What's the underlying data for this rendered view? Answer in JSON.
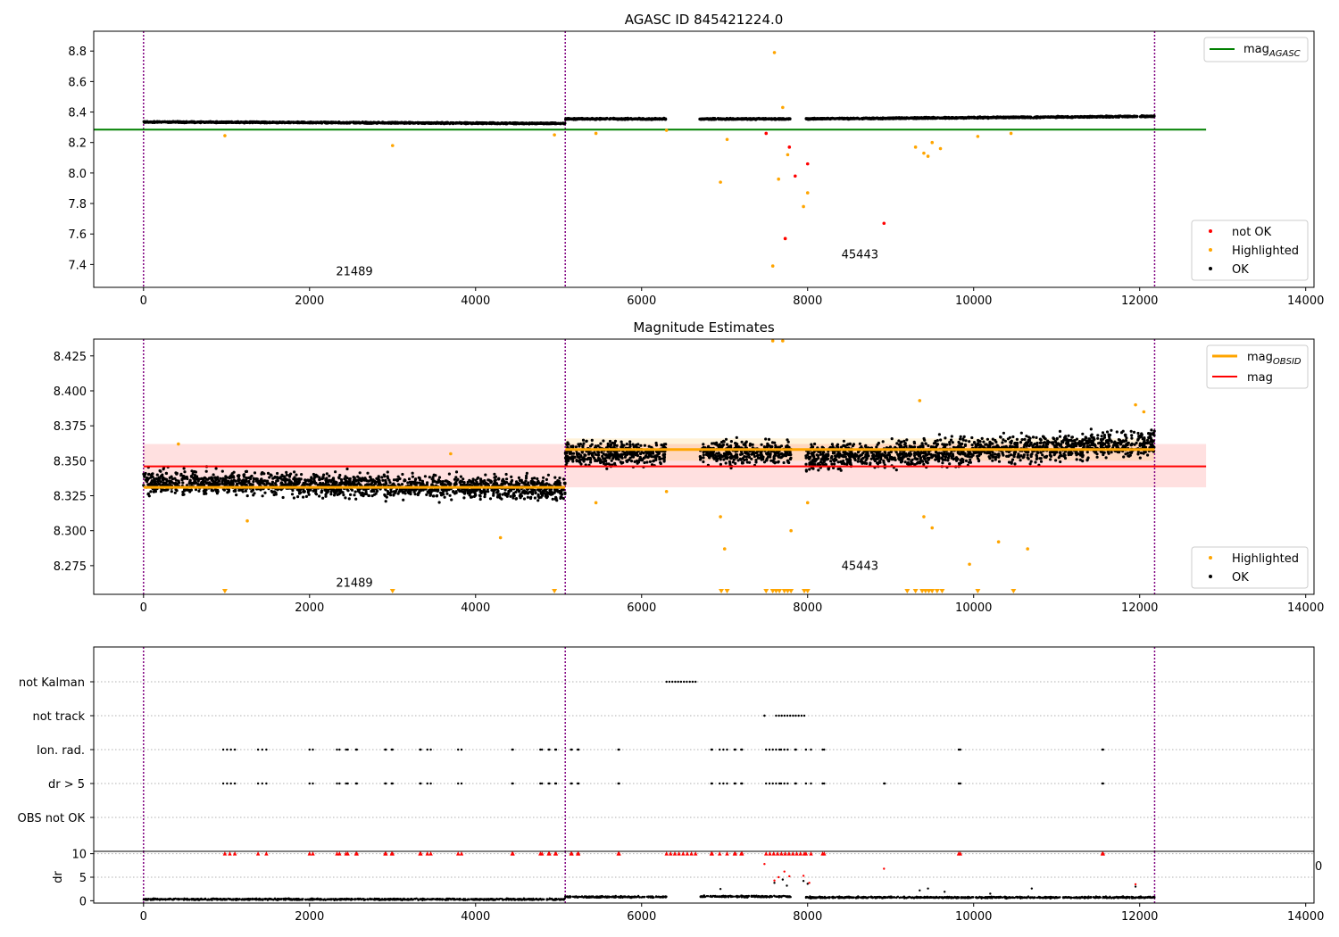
{
  "chart_data": [
    {
      "type": "scatter",
      "title": "AGASC ID 845421224.0",
      "xlim": [
        -600,
        14100
      ],
      "ylim": [
        7.25,
        8.93
      ],
      "x_ticks": [
        0,
        2000,
        4000,
        6000,
        8000,
        10000,
        12000,
        14000
      ],
      "y_ticks": [
        7.4,
        7.6,
        7.8,
        8.0,
        8.2,
        8.4,
        8.6,
        8.8
      ],
      "obsid_boundaries": [
        0,
        5080,
        12180
      ],
      "obsid_labels": [
        {
          "text": "21489",
          "x": 2540,
          "y": 7.33
        },
        {
          "text": "45443",
          "x": 8630,
          "y": 7.44
        }
      ],
      "series": [
        {
          "name": "OK",
          "color": "#000000",
          "segments": [
            {
              "x": [
                0,
                5080
              ],
              "y": [
                8.335,
                8.325
              ]
            },
            {
              "x": [
                5080,
                6300
              ],
              "y": [
                8.355,
                8.355
              ]
            },
            {
              "x": [
                6700,
                7800
              ],
              "y": [
                8.355,
                8.355
              ]
            },
            {
              "x": [
                7980,
                12180
              ],
              "y": [
                8.355,
                8.372
              ]
            }
          ]
        },
        {
          "name": "Highlighted",
          "color": "#ffa500",
          "points": [
            [
              980,
              8.245
            ],
            [
              3000,
              8.18
            ],
            [
              4950,
              8.25
            ],
            [
              5450,
              8.26
            ],
            [
              6300,
              8.28
            ],
            [
              6950,
              7.94
            ],
            [
              7030,
              8.22
            ],
            [
              7580,
              7.39
            ],
            [
              7600,
              8.79
            ],
            [
              7650,
              7.96
            ],
            [
              7700,
              8.43
            ],
            [
              7730,
              7.57
            ],
            [
              7760,
              8.12
            ],
            [
              7950,
              7.78
            ],
            [
              8000,
              7.87
            ],
            [
              9300,
              8.17
            ],
            [
              9400,
              8.13
            ],
            [
              9450,
              8.11
            ],
            [
              9500,
              8.2
            ],
            [
              9600,
              8.16
            ],
            [
              10050,
              8.24
            ],
            [
              10450,
              8.26
            ]
          ]
        },
        {
          "name": "not OK",
          "color": "#ff0000",
          "points": [
            [
              7500,
              8.26
            ],
            [
              7730,
              7.57
            ],
            [
              7780,
              8.17
            ],
            [
              7850,
              7.98
            ],
            [
              8000,
              8.06
            ],
            [
              8920,
              7.67
            ]
          ]
        },
        {
          "name": "mag_AGASC",
          "color": "#008000",
          "type": "line",
          "x": [
            -600,
            12800
          ],
          "y": [
            8.285,
            8.285
          ]
        }
      ],
      "legend_line": {
        "label": "mag",
        "sub": "AGASC"
      },
      "legend_points": [
        "not OK",
        "Highlighted",
        "OK"
      ],
      "legend_placement": {
        "lines": "top-right",
        "points": "bottom-right"
      }
    },
    {
      "type": "scatter",
      "title": "Magnitude Estimates",
      "xlim": [
        -600,
        14100
      ],
      "ylim": [
        8.2545,
        8.437
      ],
      "x_ticks": [
        0,
        2000,
        4000,
        6000,
        8000,
        10000,
        12000,
        14000
      ],
      "y_ticks": [
        8.275,
        8.3,
        8.325,
        8.35,
        8.375,
        8.4,
        8.425
      ],
      "obsid_boundaries": [
        0,
        5080,
        12180
      ],
      "obsid_labels": [
        {
          "text": "21489",
          "x": 2540,
          "y": 8.26
        },
        {
          "text": "45443",
          "x": 8630,
          "y": 8.272
        }
      ],
      "series": [
        {
          "name": "OK",
          "color": "#000000",
          "segments": [
            {
              "x": [
                0,
                5080
              ],
              "y": [
                8.335,
                8.33
              ],
              "spread": 0.012
            },
            {
              "x": [
                5080,
                6300
              ],
              "y": [
                8.355,
                8.355
              ],
              "spread": 0.012
            },
            {
              "x": [
                6700,
                7800
              ],
              "y": [
                8.356,
                8.356
              ],
              "spread": 0.012
            },
            {
              "x": [
                7980,
                12180
              ],
              "y": [
                8.352,
                8.363
              ],
              "spread": 0.014
            }
          ]
        },
        {
          "name": "Highlighted",
          "color": "#ffa500",
          "points": [
            [
              420,
              8.362
            ],
            [
              1250,
              8.307
            ],
            [
              3700,
              8.355
            ],
            [
              4300,
              8.295
            ],
            [
              5450,
              8.32
            ],
            [
              6300,
              8.328
            ],
            [
              6950,
              8.31
            ],
            [
              7000,
              8.287
            ],
            [
              7580,
              8.437
            ],
            [
              7700,
              8.437
            ],
            [
              7800,
              8.3
            ],
            [
              8000,
              8.32
            ],
            [
              9350,
              8.393
            ],
            [
              9400,
              8.31
            ],
            [
              9500,
              8.302
            ],
            [
              9950,
              8.276
            ],
            [
              10300,
              8.292
            ],
            [
              10650,
              8.287
            ],
            [
              11950,
              8.39
            ],
            [
              12050,
              8.385
            ]
          ]
        },
        {
          "name": "mag_OBSID",
          "color": "#ffa500",
          "type": "step",
          "segments": [
            {
              "x": [
                0,
                5080
              ],
              "y": 8.331
            },
            {
              "x": [
                5080,
                12180
              ],
              "y": 8.358
            }
          ]
        },
        {
          "name": "mag",
          "color": "#ff0000",
          "type": "line",
          "x": [
            -600,
            12800
          ],
          "y": [
            8.346,
            8.346
          ],
          "band": [
            8.331,
            8.362
          ]
        }
      ],
      "below_range_markers": [
        980,
        3000,
        4950,
        6960,
        7030,
        7500,
        7580,
        7620,
        7660,
        7720,
        7760,
        7800,
        7960,
        8000,
        9200,
        9300,
        9380,
        9420,
        9460,
        9500,
        9560,
        9620,
        10050,
        10480
      ],
      "legend_lines": [
        {
          "label": "mag",
          "sub": "OBSID"
        },
        {
          "label": "mag",
          "sub": ""
        }
      ],
      "legend_points": [
        "Highlighted",
        "OK"
      ],
      "legend_placement": {
        "lines": "top-right",
        "points": "bottom-right"
      }
    },
    {
      "type": "scatter",
      "title": "",
      "xlim": [
        -600,
        14100
      ],
      "categories": [
        "not Kalman",
        "not track",
        "Ion. rad.",
        "dr > 5",
        "OBS not OK"
      ],
      "flags": {
        "not Kalman": [
          [
            6300,
            6650
          ]
        ],
        "not track": [
          [
            7480,
            7480
          ],
          [
            7620,
            7960
          ]
        ],
        "Ion. rad.": [
          [
            960,
            1100
          ],
          [
            1380,
            1480
          ],
          [
            2000,
            2040
          ],
          [
            2330,
            2360
          ],
          [
            2440,
            2460
          ],
          [
            2560,
            2570
          ],
          [
            2910,
            2920
          ],
          [
            2990,
            3000
          ],
          [
            3330,
            3340
          ],
          [
            3420,
            3460
          ],
          [
            3790,
            3830
          ],
          [
            4440,
            4450
          ],
          [
            4780,
            4800
          ],
          [
            4880,
            4890
          ],
          [
            4960,
            4970
          ],
          [
            5150,
            5160
          ],
          [
            5230,
            5240
          ],
          [
            5720,
            5730
          ],
          [
            6840,
            6850
          ],
          [
            6940,
            7030
          ],
          [
            7120,
            7130
          ],
          [
            7200,
            7210
          ],
          [
            7500,
            7620
          ],
          [
            7660,
            7680
          ],
          [
            7720,
            7760
          ],
          [
            7850,
            7860
          ],
          [
            7980,
            8040
          ],
          [
            8180,
            8200
          ],
          [
            9820,
            9840
          ],
          [
            11550,
            11560
          ]
        ],
        "dr > 5": [
          [
            960,
            1100
          ],
          [
            1380,
            1480
          ],
          [
            2000,
            2040
          ],
          [
            2330,
            2360
          ],
          [
            2440,
            2460
          ],
          [
            2560,
            2570
          ],
          [
            2910,
            2920
          ],
          [
            2990,
            3000
          ],
          [
            3330,
            3340
          ],
          [
            3420,
            3460
          ],
          [
            3790,
            3830
          ],
          [
            4440,
            4450
          ],
          [
            4780,
            4800
          ],
          [
            4880,
            4890
          ],
          [
            4960,
            4970
          ],
          [
            5150,
            5160
          ],
          [
            5230,
            5240
          ],
          [
            5720,
            5730
          ],
          [
            6840,
            6850
          ],
          [
            6940,
            7030
          ],
          [
            7120,
            7130
          ],
          [
            7200,
            7210
          ],
          [
            7500,
            7620
          ],
          [
            7660,
            7680
          ],
          [
            7720,
            7760
          ],
          [
            7850,
            7860
          ],
          [
            7980,
            8040
          ],
          [
            8180,
            8200
          ],
          [
            8920,
            8930
          ],
          [
            9820,
            9840
          ],
          [
            11550,
            11560
          ]
        ],
        "OBS not OK": []
      },
      "obsid_boundaries": [
        0,
        5080,
        12180
      ]
    },
    {
      "type": "scatter",
      "title": "",
      "ylabel": "dr",
      "xlim": [
        -600,
        14100
      ],
      "ylim": [
        -0.5,
        10.5
      ],
      "x_ticks": [
        0,
        2000,
        4000,
        6000,
        8000,
        10000,
        12000,
        14000
      ],
      "y_ticks": [
        0,
        5,
        10
      ],
      "obsid_boundaries": [
        0,
        5080,
        12180
      ],
      "series": [
        {
          "name": "dr",
          "color": "#000000",
          "segments": [
            {
              "x": [
                0,
                5080
              ],
              "y": 0.3
            },
            {
              "x": [
                5080,
                6300
              ],
              "y": 0.8
            },
            {
              "x": [
                6700,
                7800
              ],
              "y": 0.9
            },
            {
              "x": [
                7980,
                12180
              ],
              "y": 0.7
            }
          ],
          "outliers": [
            [
              6950,
              2.5
            ],
            [
              7600,
              3.8
            ],
            [
              7700,
              4.5
            ],
            [
              7750,
              3.2
            ],
            [
              7950,
              4.2
            ],
            [
              8000,
              3.6
            ],
            [
              9350,
              2.2
            ],
            [
              9450,
              2.6
            ],
            [
              9650,
              1.9
            ],
            [
              10200,
              1.5
            ],
            [
              10700,
              2.6
            ],
            [
              11950,
              3.0
            ]
          ]
        },
        {
          "name": "clipped",
          "color": "#ff0000",
          "clipped_at_10": [
            [
              980,
              1100
            ],
            [
              1380,
              1480
            ],
            [
              2000,
              2040
            ],
            [
              2330,
              2360
            ],
            [
              2440,
              2460
            ],
            [
              2560,
              2570
            ],
            [
              2910,
              2920
            ],
            [
              2990,
              3000
            ],
            [
              3330,
              3340
            ],
            [
              3420,
              3460
            ],
            [
              3790,
              3830
            ],
            [
              4440,
              4450
            ],
            [
              4780,
              4800
            ],
            [
              4880,
              4890
            ],
            [
              4960,
              4970
            ],
            [
              5150,
              5160
            ],
            [
              5230,
              5240
            ],
            [
              5720,
              5730
            ],
            [
              6300,
              6650
            ],
            [
              6840,
              6850
            ],
            [
              6940,
              7030
            ],
            [
              7120,
              7130
            ],
            [
              7200,
              7210
            ],
            [
              7500,
              7960
            ],
            [
              7980,
              8040
            ],
            [
              8180,
              8200
            ],
            [
              9820,
              9840
            ],
            [
              11550,
              11560
            ]
          ],
          "points": [
            [
              7480,
              7.8
            ],
            [
              7600,
              4.3
            ],
            [
              7650,
              5.0
            ],
            [
              7720,
              6.2
            ],
            [
              7780,
              5.2
            ],
            [
              7950,
              5.3
            ],
            [
              8020,
              3.8
            ],
            [
              8920,
              6.8
            ],
            [
              11950,
              3.5
            ]
          ]
        }
      ]
    }
  ],
  "stray_text": "0"
}
